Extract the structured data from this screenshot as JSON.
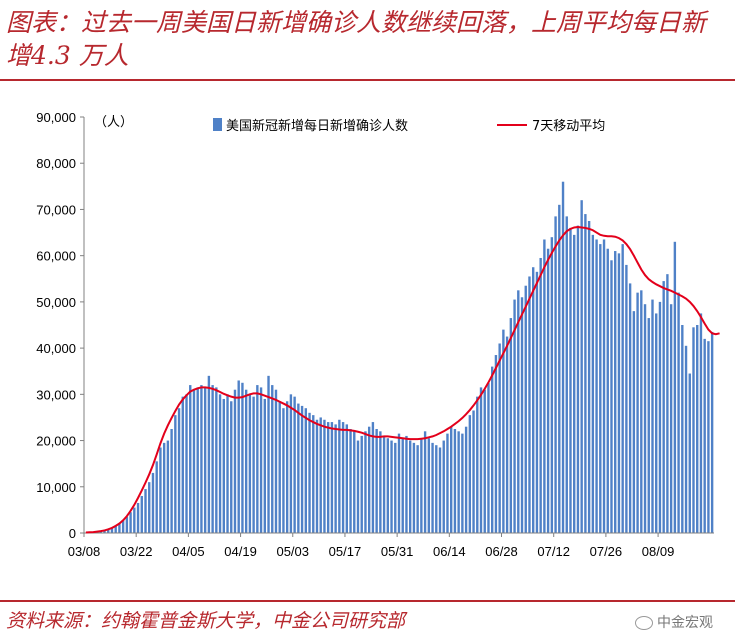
{
  "header": {
    "title": "图表：过去一周美国日新增确诊人数继续回落，上周平均每日新增4.3 万人"
  },
  "footer": {
    "source": "资料来源：约翰霍普金斯大学，中金公司研究部",
    "watermark": "中金宏观"
  },
  "chart_data": {
    "type": "bar",
    "unit_label": "（人）",
    "ylim": [
      0,
      90000
    ],
    "yticks": [
      "0",
      "10,000",
      "20,000",
      "30,000",
      "40,000",
      "50,000",
      "60,000",
      "70,000",
      "80,000",
      "90,000"
    ],
    "xtick_labels": [
      "03/08",
      "03/22",
      "04/05",
      "04/19",
      "05/03",
      "05/17",
      "05/31",
      "06/14",
      "06/28",
      "07/12",
      "07/26",
      "08/09"
    ],
    "legend_position": "top",
    "grid": false,
    "colors": {
      "bar": "#4f81c7",
      "line": "#e3001b"
    },
    "series": [
      {
        "name": "美国新冠新增每日新增确诊人数",
        "type": "bar",
        "values": [
          100,
          200,
          300,
          400,
          500,
          700,
          900,
          1200,
          1600,
          2100,
          2700,
          3500,
          4500,
          5500,
          6500,
          8000,
          9500,
          11000,
          13000,
          15500,
          18500,
          19500,
          20000,
          22500,
          25500,
          27000,
          29500,
          30000,
          32000,
          31000,
          31500,
          32000,
          31500,
          34000,
          32000,
          31500,
          30000,
          29000,
          30000,
          28500,
          31000,
          33000,
          32500,
          31000,
          30000,
          29500,
          32000,
          31500,
          29000,
          34000,
          32000,
          31000,
          28500,
          27000,
          28500,
          30000,
          29500,
          28000,
          27500,
          27000,
          26000,
          25500,
          24500,
          25000,
          24500,
          24000,
          24000,
          23500,
          24500,
          24000,
          23500,
          22500,
          22000,
          20000,
          21000,
          22000,
          23000,
          24000,
          22500,
          22000,
          21000,
          20500,
          20000,
          19500,
          21500,
          20500,
          21000,
          20000,
          19500,
          19000,
          20500,
          22000,
          20500,
          19500,
          19000,
          18500,
          20000,
          21500,
          23000,
          22500,
          22000,
          21500,
          23000,
          25500,
          26500,
          29500,
          31500,
          31000,
          32500,
          36000,
          38500,
          41000,
          44000,
          42500,
          46500,
          50500,
          52500,
          51000,
          53500,
          55500,
          57500,
          56500,
          59500,
          63500,
          61500,
          64000,
          68500,
          71000,
          76000,
          68500,
          66000,
          64500,
          66500,
          72000,
          69000,
          67500,
          64500,
          63500,
          62500,
          63500,
          61500,
          59000,
          61000,
          60500,
          62500,
          58000,
          54000,
          48000,
          52000,
          52500,
          49500,
          46500,
          50500,
          47500,
          50000,
          54500,
          56000,
          49500,
          63000,
          52000,
          45000,
          40500,
          34500,
          44500,
          45000,
          47500,
          42000,
          41500,
          43500
        ]
      },
      {
        "name": "7天移动平均",
        "type": "line",
        "values": [
          100,
          150,
          200,
          300,
          400,
          550,
          800,
          1100,
          1550,
          2050,
          2750,
          3650,
          4800,
          6100,
          7600,
          9200,
          10900,
          12700,
          14700,
          17000,
          19400,
          21500,
          23300,
          24900,
          26400,
          27800,
          28900,
          29800,
          30600,
          31000,
          31300,
          31500,
          31500,
          31400,
          31200,
          30900,
          30500,
          30100,
          29800,
          29500,
          29300,
          29300,
          29400,
          29700,
          30000,
          30200,
          30200,
          30000,
          29700,
          29400,
          29100,
          28800,
          28400,
          28000,
          27600,
          27100,
          26600,
          26000,
          25400,
          24900,
          24400,
          24000,
          23600,
          23300,
          23000,
          22800,
          22600,
          22500,
          22400,
          22300,
          22300,
          22200,
          22100,
          21900,
          21700,
          21400,
          21100,
          20900,
          20800,
          20800,
          20900,
          20900,
          20800,
          20700,
          20600,
          20500,
          20400,
          20300,
          20300,
          20300,
          20400,
          20500,
          20700,
          20900,
          21200,
          21600,
          22000,
          22500,
          23000,
          23600,
          24200,
          24900,
          25700,
          26600,
          27600,
          28700,
          29900,
          31200,
          32600,
          34100,
          35700,
          37300,
          38900,
          40500,
          42200,
          43900,
          45600,
          47300,
          49000,
          50700,
          52400,
          54100,
          55800,
          57500,
          59100,
          60600,
          62000,
          63300,
          64400,
          65300,
          65800,
          66100,
          66200,
          66100,
          66000,
          65800,
          65500,
          65000,
          64500,
          64300,
          64200,
          64200,
          64100,
          63800,
          63300,
          62500,
          61400,
          60000,
          58500,
          57000,
          55800,
          54900,
          54300,
          53800,
          53400,
          53000,
          52700,
          52400,
          52000,
          51600,
          51200,
          50700,
          50000,
          49100,
          48000,
          46700,
          45300,
          44000,
          43200,
          43000,
          43200
        ]
      }
    ]
  }
}
